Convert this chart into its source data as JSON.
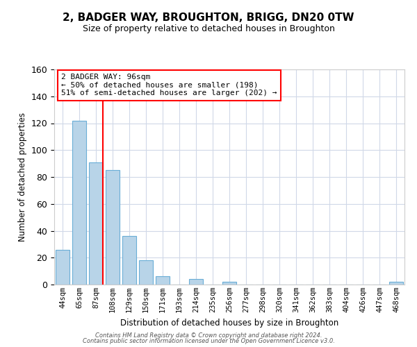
{
  "title": "2, BADGER WAY, BROUGHTON, BRIGG, DN20 0TW",
  "subtitle": "Size of property relative to detached houses in Broughton",
  "xlabel": "Distribution of detached houses by size in Broughton",
  "ylabel": "Number of detached properties",
  "bar_labels": [
    "44sqm",
    "65sqm",
    "87sqm",
    "108sqm",
    "129sqm",
    "150sqm",
    "171sqm",
    "193sqm",
    "214sqm",
    "235sqm",
    "256sqm",
    "277sqm",
    "298sqm",
    "320sqm",
    "341sqm",
    "362sqm",
    "383sqm",
    "404sqm",
    "426sqm",
    "447sqm",
    "468sqm"
  ],
  "bar_values": [
    26,
    122,
    91,
    85,
    36,
    18,
    6,
    0,
    4,
    0,
    2,
    0,
    0,
    0,
    0,
    0,
    0,
    0,
    0,
    0,
    2
  ],
  "bar_color": "#b8d4e8",
  "bar_edgecolor": "#6aaed6",
  "ylim": [
    0,
    160
  ],
  "yticks": [
    0,
    20,
    40,
    60,
    80,
    100,
    120,
    140,
    160
  ],
  "vline_x": 2.43,
  "vline_color": "red",
  "annotation_text": "2 BADGER WAY: 96sqm\n← 50% of detached houses are smaller (198)\n51% of semi-detached houses are larger (202) →",
  "annotation_box_color": "white",
  "annotation_box_edgecolor": "red",
  "footer1": "Contains HM Land Registry data © Crown copyright and database right 2024.",
  "footer2": "Contains public sector information licensed under the Open Government Licence v3.0."
}
